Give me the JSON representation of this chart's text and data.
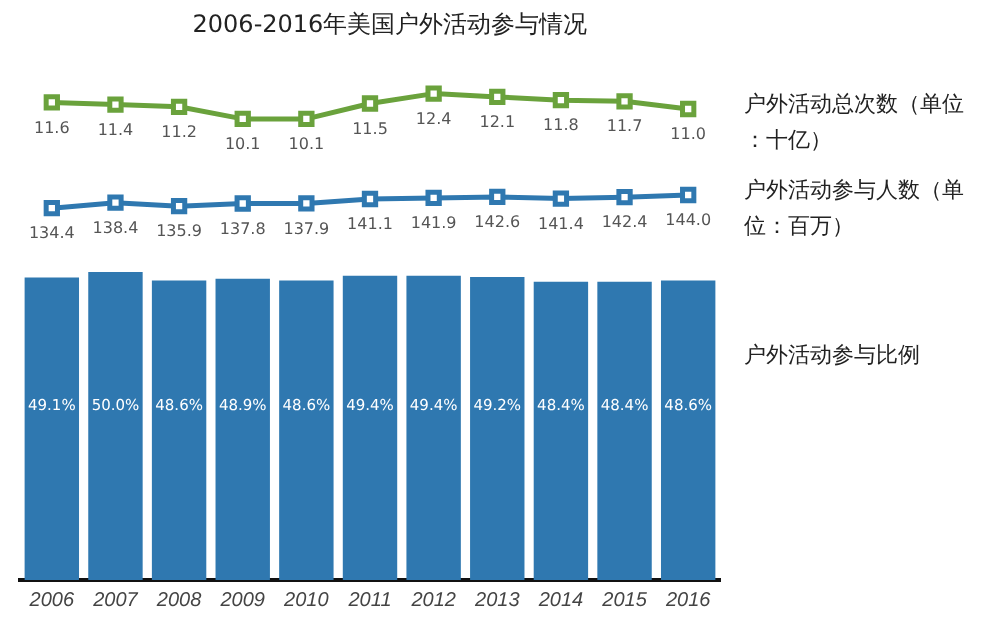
{
  "chart_data": [
    {
      "type": "line",
      "title": "2006-2016年美国户外活动参与情况",
      "categories": [
        "2006",
        "2007",
        "2008",
        "2009",
        "2010",
        "2011",
        "2012",
        "2013",
        "2014",
        "2015",
        "2016"
      ],
      "tick_labels": false,
      "marker": "square",
      "legend": false,
      "grid": false,
      "series": [
        {
          "name": "户外活动总次数（单位：十亿）",
          "color": "#6aa23c",
          "values": [
            11.6,
            11.4,
            11.2,
            10.1,
            10.1,
            11.5,
            12.4,
            12.1,
            11.8,
            11.7,
            11.0
          ],
          "value_labels": [
            "11.6",
            "11.4",
            "11.2",
            "10.1",
            "10.1",
            "11.5",
            "12.4",
            "12.1",
            "11.8",
            "11.7",
            "11.0"
          ]
        }
      ]
    },
    {
      "type": "line",
      "categories": [
        "2006",
        "2007",
        "2008",
        "2009",
        "2010",
        "2011",
        "2012",
        "2013",
        "2014",
        "2015",
        "2016"
      ],
      "tick_labels": false,
      "marker": "square",
      "legend": false,
      "grid": false,
      "series": [
        {
          "name": "户外活动参与人数（单位：百万）",
          "color": "#2f78b0",
          "values": [
            134.4,
            138.4,
            135.9,
            137.8,
            137.9,
            141.1,
            141.9,
            142.6,
            141.4,
            142.4,
            144.0
          ],
          "value_labels": [
            "134.4",
            "138.4",
            "135.9",
            "137.8",
            "137.9",
            "141.1",
            "141.9",
            "142.6",
            "141.4",
            "142.4",
            "144.0"
          ]
        }
      ]
    },
    {
      "type": "bar",
      "categories": [
        "2006",
        "2007",
        "2008",
        "2009",
        "2010",
        "2011",
        "2012",
        "2013",
        "2014",
        "2015",
        "2016"
      ],
      "tick_labels": "x",
      "legend": false,
      "grid": false,
      "series": [
        {
          "name": "户外活动参与比例",
          "color": "#2f78b0",
          "values": [
            49.1,
            50.0,
            48.6,
            48.9,
            48.6,
            49.4,
            49.4,
            49.2,
            48.4,
            48.4,
            48.6
          ],
          "value_labels": [
            "49.1%",
            "50.0%",
            "48.6%",
            "48.9%",
            "48.6%",
            "49.4%",
            "49.4%",
            "49.2%",
            "48.4%",
            "48.4%",
            "48.6%"
          ]
        }
      ]
    }
  ]
}
